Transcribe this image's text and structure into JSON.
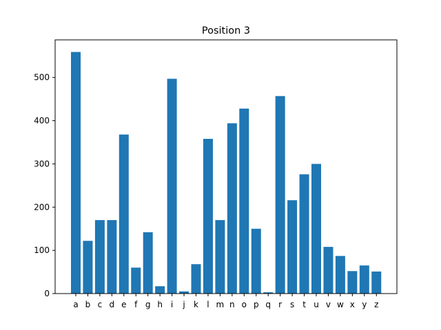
{
  "chart_data": {
    "type": "bar",
    "title": "Position 3",
    "xlabel": "",
    "ylabel": "",
    "categories": [
      "a",
      "b",
      "c",
      "d",
      "e",
      "f",
      "g",
      "h",
      "i",
      "j",
      "k",
      "l",
      "m",
      "n",
      "o",
      "p",
      "q",
      "r",
      "s",
      "t",
      "u",
      "v",
      "w",
      "x",
      "y",
      "z"
    ],
    "values": [
      559,
      122,
      170,
      170,
      368,
      60,
      142,
      17,
      497,
      5,
      68,
      358,
      170,
      394,
      428,
      150,
      3,
      457,
      216,
      276,
      300,
      108,
      87,
      52,
      65,
      51
    ],
    "ylim": [
      0,
      587
    ],
    "yticks": [
      0,
      100,
      200,
      300,
      400,
      500
    ],
    "grid": false,
    "legend": "none",
    "bar_color": "#1f77b4"
  }
}
